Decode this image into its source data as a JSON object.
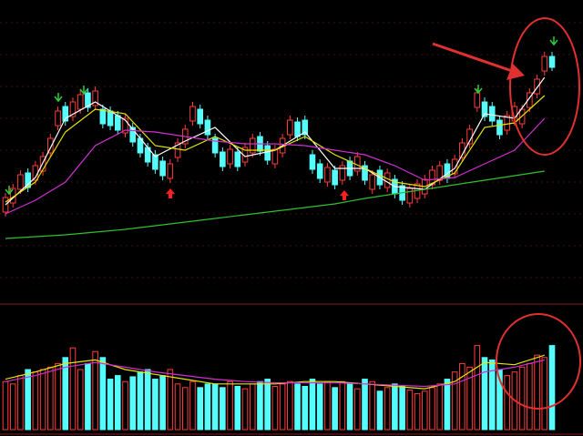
{
  "chart_data": [
    {
      "type": "candlestick",
      "up_color": "#ff3c3c",
      "down_color": "#54fcfc",
      "ylim": [
        0,
        330
      ],
      "yticks": [
        25,
        60,
        95,
        130,
        165,
        200,
        235,
        270,
        305
      ],
      "grid": true,
      "open": [
        97,
        107,
        122,
        140,
        132,
        142,
        162,
        192,
        213,
        202,
        210,
        228,
        214,
        210,
        208,
        203,
        184,
        190,
        178,
        168,
        160,
        153,
        134,
        157,
        172,
        197,
        210,
        198,
        178,
        163,
        150,
        163,
        152,
        162,
        180,
        170,
        150,
        162,
        182,
        196,
        198,
        160,
        150,
        130,
        143,
        132,
        153,
        142,
        148,
        122,
        143,
        124,
        133,
        126,
        107,
        112,
        117,
        127,
        132,
        150,
        139,
        157,
        172,
        212,
        218,
        213,
        198,
        187,
        197,
        194,
        212,
        227,
        252,
        268
      ],
      "high": [
        118,
        128,
        143,
        145,
        153,
        163,
        183,
        213,
        218,
        223,
        231,
        233,
        235,
        215,
        213,
        208,
        205,
        195,
        183,
        173,
        165,
        158,
        155,
        178,
        193,
        218,
        215,
        203,
        183,
        168,
        171,
        168,
        173,
        183,
        185,
        175,
        171,
        183,
        203,
        201,
        203,
        165,
        155,
        151,
        148,
        153,
        158,
        163,
        153,
        143,
        148,
        145,
        138,
        131,
        128,
        133,
        138,
        148,
        153,
        155,
        160,
        178,
        193,
        233,
        223,
        218,
        203,
        208,
        218,
        215,
        233,
        248,
        273,
        273
      ],
      "low": [
        92,
        102,
        117,
        119,
        127,
        137,
        157,
        187,
        192,
        197,
        205,
        207,
        209,
        189,
        187,
        182,
        179,
        169,
        157,
        147,
        139,
        132,
        129,
        152,
        167,
        192,
        189,
        177,
        157,
        142,
        145,
        142,
        147,
        157,
        159,
        149,
        145,
        157,
        177,
        175,
        177,
        139,
        129,
        125,
        122,
        127,
        132,
        137,
        127,
        117,
        122,
        119,
        112,
        105,
        102,
        107,
        112,
        122,
        127,
        129,
        134,
        152,
        167,
        207,
        197,
        192,
        177,
        182,
        192,
        189,
        207,
        222,
        247,
        252
      ],
      "close": [
        113,
        123,
        138,
        124,
        148,
        158,
        178,
        208,
        197,
        218,
        226,
        212,
        230,
        194,
        192,
        187,
        200,
        174,
        162,
        152,
        144,
        137,
        150,
        173,
        188,
        213,
        194,
        182,
        162,
        147,
        166,
        147,
        168,
        178,
        164,
        154,
        166,
        178,
        198,
        180,
        182,
        144,
        134,
        146,
        127,
        148,
        137,
        158,
        132,
        138,
        127,
        140,
        117,
        110,
        123,
        128,
        133,
        143,
        148,
        134,
        155,
        173,
        188,
        228,
        202,
        197,
        182,
        203,
        213,
        210,
        228,
        243,
        268,
        256
      ],
      "series": [
        {
          "color": "#ffffff",
          "x": [
            0,
            4,
            8,
            12,
            16,
            20,
            24,
            28,
            32,
            36,
            40,
            44,
            48,
            52,
            56,
            60,
            64,
            68,
            72
          ],
          "values": [
            105,
            135,
            200,
            218,
            198,
            158,
            175,
            190,
            158,
            165,
            185,
            145,
            145,
            125,
            122,
            145,
            205,
            200,
            245
          ]
        },
        {
          "color": "#e6e600",
          "x": [
            0,
            4,
            8,
            12,
            16,
            20,
            24,
            28,
            32,
            36,
            40,
            44,
            48,
            52,
            56,
            60,
            64,
            68,
            72
          ],
          "values": [
            108,
            130,
            185,
            210,
            205,
            170,
            165,
            180,
            165,
            165,
            180,
            160,
            145,
            130,
            125,
            140,
            190,
            195,
            225
          ]
        },
        {
          "color": "#d030d0",
          "x": [
            0,
            4,
            8,
            12,
            16,
            20,
            24,
            28,
            32,
            36,
            40,
            44,
            48,
            52,
            56,
            60,
            64,
            68,
            72
          ],
          "values": [
            95,
            110,
            130,
            170,
            187,
            185,
            180,
            175,
            172,
            172,
            170,
            165,
            160,
            148,
            132,
            135,
            150,
            165,
            200
          ]
        },
        {
          "color": "#30c030",
          "x": [
            0,
            4,
            8,
            12,
            16,
            20,
            24,
            28,
            32,
            36,
            40,
            44,
            48,
            52,
            56,
            60,
            64,
            68,
            72
          ],
          "values": [
            68,
            70,
            72,
            75,
            78,
            82,
            86,
            90,
            94,
            98,
            102,
            106,
            112,
            117,
            122,
            127,
            132,
            137,
            142
          ]
        }
      ]
    },
    {
      "type": "bar",
      "ylim": [
        0,
        100
      ],
      "values": [
        40,
        38,
        45,
        50,
        48,
        50,
        52,
        55,
        60,
        68,
        50,
        55,
        65,
        60,
        42,
        45,
        40,
        44,
        48,
        50,
        42,
        45,
        50,
        38,
        35,
        40,
        35,
        38,
        38,
        35,
        40,
        36,
        34,
        38,
        40,
        42,
        36,
        38,
        40,
        38,
        36,
        42,
        38,
        40,
        35,
        40,
        38,
        34,
        42,
        40,
        32,
        35,
        38,
        36,
        33,
        30,
        32,
        35,
        38,
        42,
        48,
        55,
        52,
        70,
        60,
        58,
        50,
        45,
        48,
        52,
        55,
        62,
        60,
        70
      ],
      "series": [
        {
          "color": "#e6e600",
          "x": [
            0,
            4,
            8,
            12,
            16,
            20,
            24,
            28,
            32,
            36,
            40,
            44,
            48,
            52,
            56,
            60,
            64,
            68,
            72
          ],
          "values": [
            42,
            48,
            55,
            58,
            50,
            46,
            42,
            38,
            38,
            38,
            40,
            40,
            38,
            36,
            34,
            40,
            56,
            54,
            62
          ]
        },
        {
          "color": "#d030d0",
          "x": [
            0,
            4,
            8,
            12,
            16,
            20,
            24,
            28,
            32,
            36,
            40,
            44,
            48,
            52,
            56,
            60,
            64,
            68,
            72
          ],
          "values": [
            40,
            45,
            52,
            56,
            52,
            48,
            45,
            42,
            40,
            39,
            39,
            39,
            38,
            37,
            36,
            38,
            48,
            52,
            58
          ]
        }
      ]
    }
  ]
}
